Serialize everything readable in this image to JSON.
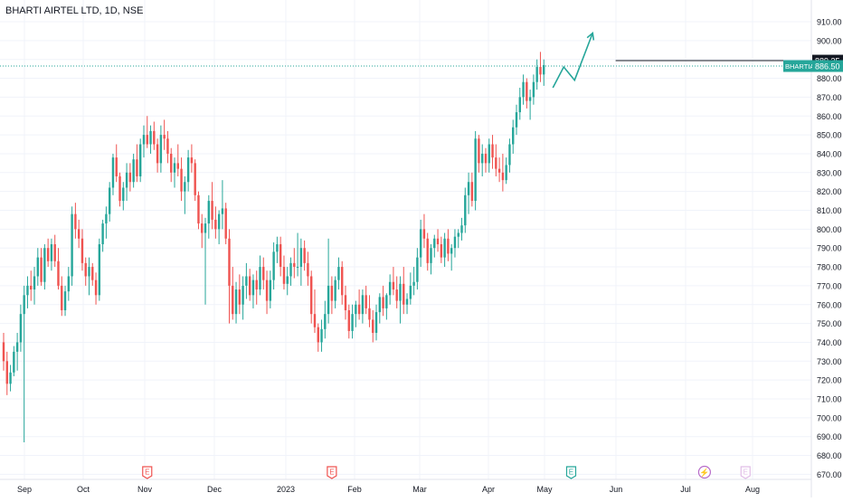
{
  "header": {
    "title": "BHARTI AIRTEL LTD, 1D, NSE"
  },
  "colors": {
    "up": "#26a69a",
    "down": "#ef5350",
    "grid": "#f0f3fa",
    "axis_text": "#131722",
    "line_resistance": "#131722",
    "projection": "#26a69a",
    "event_red": "#ef5350",
    "event_teal": "#26a69a",
    "event_purple": "#b76bc9"
  },
  "chart_data": {
    "type": "candlestick",
    "title": "BHARTI AIRTEL LTD, 1D, NSE",
    "xlabel": "",
    "ylabel": "",
    "ylim": [
      670,
      920
    ],
    "y_ticks": [
      670,
      680,
      690,
      700,
      710,
      720,
      730,
      740,
      750,
      760,
      770,
      780,
      790,
      800,
      810,
      820,
      830,
      840,
      850,
      860,
      870,
      880,
      890,
      900,
      910
    ],
    "x_labels": [
      "Sep",
      "Oct",
      "Nov",
      "Dec",
      "2023",
      "Feb",
      "Mar",
      "Apr",
      "May",
      "Jun",
      "Jul",
      "Aug"
    ],
    "price_labels": [
      {
        "text": "889.35",
        "value": 889.35,
        "style": "dark"
      },
      {
        "text": "886.50",
        "value": 886.5,
        "style": "teal",
        "tag": "BHARTIARTL"
      }
    ],
    "resistance_level": 889.35,
    "last_price": 886.5,
    "events": [
      {
        "type": "earnings",
        "label": "E",
        "after_candle": 42
      },
      {
        "type": "earnings",
        "label": "E",
        "after_candle": 96
      },
      {
        "type": "dividend",
        "label": "E",
        "after_candle": 166
      },
      {
        "type": "split",
        "label": "",
        "after_candle": 205
      },
      {
        "type": "earnings-future",
        "label": "E",
        "after_candle": 217
      }
    ],
    "candles": [
      [
        740,
        745,
        725,
        730
      ],
      [
        730,
        735,
        712,
        718
      ],
      [
        718,
        728,
        714,
        724
      ],
      [
        724,
        738,
        722,
        735
      ],
      [
        735,
        745,
        725,
        740
      ],
      [
        740,
        760,
        735,
        755
      ],
      [
        755,
        770,
        687,
        765
      ],
      [
        765,
        775,
        758,
        770
      ],
      [
        770,
        778,
        762,
        768
      ],
      [
        768,
        780,
        760,
        775
      ],
      [
        775,
        790,
        770,
        785
      ],
      [
        785,
        790,
        770,
        772
      ],
      [
        772,
        792,
        768,
        790
      ],
      [
        790,
        795,
        780,
        783
      ],
      [
        783,
        795,
        778,
        792
      ],
      [
        792,
        797,
        780,
        783
      ],
      [
        783,
        790,
        768,
        770
      ],
      [
        770,
        775,
        754,
        757
      ],
      [
        757,
        770,
        754,
        767
      ],
      [
        767,
        780,
        762,
        775
      ],
      [
        775,
        812,
        770,
        808
      ],
      [
        808,
        814,
        795,
        800
      ],
      [
        800,
        805,
        790,
        795
      ],
      [
        795,
        800,
        778,
        782
      ],
      [
        782,
        785,
        770,
        775
      ],
      [
        775,
        785,
        765,
        780
      ],
      [
        780,
        782,
        770,
        773
      ],
      [
        773,
        777,
        760,
        765
      ],
      [
        765,
        795,
        762,
        792
      ],
      [
        792,
        805,
        788,
        803
      ],
      [
        803,
        812,
        795,
        808
      ],
      [
        808,
        825,
        804,
        822
      ],
      [
        822,
        840,
        818,
        838
      ],
      [
        838,
        845,
        825,
        828
      ],
      [
        828,
        830,
        812,
        815
      ],
      [
        815,
        825,
        810,
        822
      ],
      [
        822,
        835,
        815,
        830
      ],
      [
        830,
        835,
        820,
        825
      ],
      [
        825,
        840,
        822,
        837
      ],
      [
        837,
        845,
        825,
        828
      ],
      [
        828,
        848,
        825,
        845
      ],
      [
        845,
        855,
        838,
        850
      ],
      [
        850,
        860,
        843,
        845
      ],
      [
        845,
        855,
        840,
        852
      ],
      [
        852,
        857,
        842,
        845
      ],
      [
        845,
        848,
        830,
        835
      ],
      [
        835,
        855,
        830,
        850
      ],
      [
        850,
        858,
        842,
        848
      ],
      [
        848,
        852,
        835,
        840
      ],
      [
        840,
        843,
        825,
        830
      ],
      [
        830,
        838,
        822,
        835
      ],
      [
        835,
        845,
        828,
        832
      ],
      [
        832,
        838,
        815,
        820
      ],
      [
        820,
        828,
        808,
        825
      ],
      [
        825,
        842,
        820,
        838
      ],
      [
        838,
        845,
        830,
        835
      ],
      [
        835,
        837,
        815,
        818
      ],
      [
        818,
        820,
        800,
        803
      ],
      [
        803,
        808,
        790,
        798
      ],
      [
        798,
        806,
        760,
        803
      ],
      [
        803,
        818,
        795,
        815
      ],
      [
        815,
        825,
        800,
        805
      ],
      [
        805,
        812,
        795,
        800
      ],
      [
        800,
        810,
        792,
        808
      ],
      [
        808,
        826,
        800,
        811
      ],
      [
        811,
        814,
        792,
        795
      ],
      [
        795,
        800,
        750,
        770
      ],
      [
        770,
        780,
        752,
        755
      ],
      [
        755,
        772,
        750,
        768
      ],
      [
        768,
        776,
        755,
        760
      ],
      [
        760,
        775,
        752,
        770
      ],
      [
        770,
        782,
        763,
        775
      ],
      [
        775,
        779,
        762,
        765
      ],
      [
        765,
        776,
        758,
        773
      ],
      [
        773,
        778,
        760,
        768
      ],
      [
        768,
        786,
        765,
        780
      ],
      [
        780,
        785,
        768,
        773
      ],
      [
        773,
        778,
        755,
        762
      ],
      [
        762,
        778,
        758,
        773
      ],
      [
        773,
        793,
        768,
        788
      ],
      [
        788,
        796,
        782,
        792
      ],
      [
        792,
        796,
        775,
        780
      ],
      [
        780,
        786,
        768,
        771
      ],
      [
        771,
        780,
        765,
        775
      ],
      [
        775,
        785,
        770,
        782
      ],
      [
        782,
        790,
        774,
        780
      ],
      [
        780,
        798,
        775,
        780
      ],
      [
        780,
        795,
        770,
        790
      ],
      [
        790,
        794,
        778,
        782
      ],
      [
        782,
        788,
        770,
        775
      ],
      [
        775,
        778,
        750,
        755
      ],
      [
        755,
        768,
        745,
        748
      ],
      [
        748,
        750,
        735,
        740
      ],
      [
        740,
        752,
        735,
        747
      ],
      [
        747,
        762,
        742,
        755
      ],
      [
        755,
        795,
        750,
        770
      ],
      [
        770,
        775,
        755,
        762
      ],
      [
        762,
        775,
        758,
        773
      ],
      [
        773,
        785,
        768,
        780
      ],
      [
        780,
        783,
        760,
        765
      ],
      [
        765,
        770,
        752,
        757
      ],
      [
        757,
        760,
        742,
        746
      ],
      [
        746,
        760,
        742,
        755
      ],
      [
        755,
        762,
        748,
        760
      ],
      [
        760,
        768,
        752,
        755
      ],
      [
        755,
        768,
        750,
        765
      ],
      [
        765,
        770,
        755,
        758
      ],
      [
        758,
        765,
        748,
        752
      ],
      [
        752,
        757,
        740,
        745
      ],
      [
        745,
        760,
        741,
        756
      ],
      [
        756,
        766,
        750,
        764
      ],
      [
        764,
        770,
        754,
        758
      ],
      [
        758,
        766,
        752,
        765
      ],
      [
        765,
        776,
        760,
        772
      ],
      [
        772,
        780,
        765,
        768
      ],
      [
        768,
        775,
        758,
        762
      ],
      [
        762,
        775,
        750,
        771
      ],
      [
        771,
        780,
        755,
        760
      ],
      [
        760,
        766,
        755,
        763
      ],
      [
        763,
        777,
        760,
        770
      ],
      [
        770,
        780,
        765,
        772
      ],
      [
        772,
        790,
        768,
        785
      ],
      [
        785,
        805,
        780,
        800
      ],
      [
        800,
        808,
        790,
        795
      ],
      [
        795,
        798,
        778,
        782
      ],
      [
        782,
        792,
        776,
        790
      ],
      [
        790,
        797,
        785,
        795
      ],
      [
        795,
        800,
        788,
        792
      ],
      [
        792,
        796,
        782,
        785
      ],
      [
        785,
        798,
        780,
        795
      ],
      [
        795,
        800,
        783,
        787
      ],
      [
        787,
        792,
        778,
        790
      ],
      [
        790,
        800,
        785,
        796
      ],
      [
        796,
        800,
        790,
        798
      ],
      [
        798,
        806,
        794,
        802
      ],
      [
        802,
        822,
        798,
        818
      ],
      [
        818,
        830,
        808,
        825
      ],
      [
        825,
        830,
        812,
        815
      ],
      [
        815,
        852,
        810,
        848
      ],
      [
        848,
        850,
        830,
        835
      ],
      [
        835,
        845,
        828,
        840
      ],
      [
        840,
        843,
        830,
        835
      ],
      [
        835,
        848,
        830,
        845
      ],
      [
        845,
        850,
        832,
        838
      ],
      [
        838,
        845,
        828,
        832
      ],
      [
        832,
        838,
        825,
        830
      ],
      [
        830,
        840,
        820,
        826
      ],
      [
        826,
        838,
        824,
        834
      ],
      [
        834,
        848,
        830,
        845
      ],
      [
        845,
        858,
        840,
        854
      ],
      [
        854,
        866,
        850,
        862
      ],
      [
        862,
        875,
        858,
        870
      ],
      [
        870,
        882,
        866,
        878
      ],
      [
        878,
        880,
        864,
        868
      ],
      [
        868,
        874,
        858,
        870
      ],
      [
        870,
        882,
        866,
        878
      ],
      [
        878,
        890,
        874,
        886
      ],
      [
        886,
        894,
        878,
        882
      ],
      [
        882,
        890,
        876,
        887
      ]
    ],
    "projection": [
      [
        0,
        875
      ],
      [
        1,
        886
      ],
      [
        2,
        879
      ],
      [
        3,
        904
      ]
    ]
  }
}
